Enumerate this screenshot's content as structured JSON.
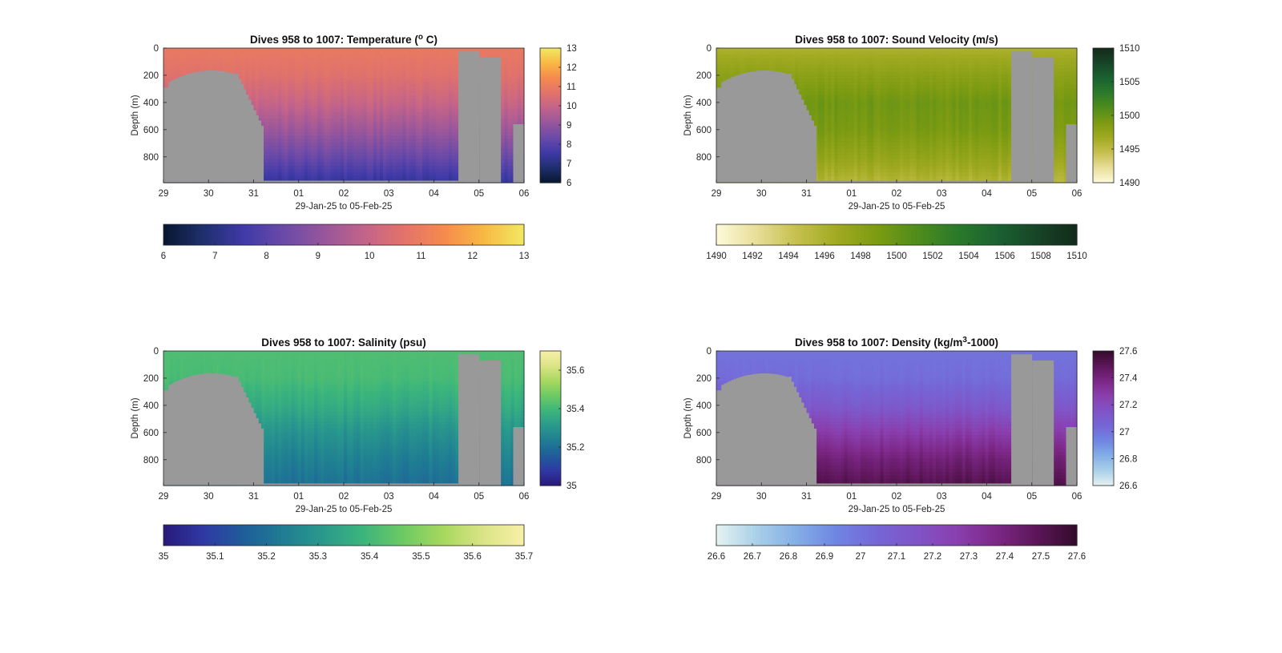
{
  "figure": {
    "panels": [
      {
        "id": "temperature",
        "title_prefix": "Dives 958 to 1007: Temperature (",
        "title_sup": "o",
        "title_suffix": " C)",
        "palette": [
          "#07172e",
          "#1f2f6e",
          "#3f3aa8",
          "#6a4aa8",
          "#97569c",
          "#c2638a",
          "#e2736a",
          "#f58a4e",
          "#f8b943",
          "#f1e963"
        ],
        "colorbar_ticks": [
          "6",
          "7",
          "8",
          "9",
          "10",
          "11",
          "12",
          "13"
        ],
        "cmin": 6,
        "cmax": 13
      },
      {
        "id": "sound_velocity",
        "title_prefix": "Dives 958 to 1007: Sound Velocity (m/s)",
        "title_sup": "",
        "title_suffix": "",
        "palette": [
          "#fefadb",
          "#e7de98",
          "#c6c04f",
          "#a1aa21",
          "#7d9b12",
          "#4f8d1c",
          "#2b7a2a",
          "#1b6231",
          "#174527",
          "#132a1b"
        ],
        "colorbar_ticks": [
          "1490",
          "1492",
          "1494",
          "1496",
          "1498",
          "1500",
          "1502",
          "1504",
          "1506",
          "1508",
          "1510"
        ],
        "side_ticks": [
          "1490",
          "1495",
          "1500",
          "1505",
          "1510"
        ],
        "cmin": 1490,
        "cmax": 1510
      },
      {
        "id": "salinity",
        "title_prefix": "Dives 958 to 1007: Salinity (psu)",
        "title_sup": "",
        "title_suffix": "",
        "palette": [
          "#29197a",
          "#2f39a4",
          "#1f5d9a",
          "#1f7d93",
          "#2a9a8c",
          "#3cb57c",
          "#6dca63",
          "#a8d85f",
          "#dbe486",
          "#f8f0a8"
        ],
        "colorbar_ticks": [
          "35",
          "35.1",
          "35.2",
          "35.3",
          "35.4",
          "35.5",
          "35.6",
          "35.7"
        ],
        "side_ticks": [
          "35",
          "35.2",
          "35.4",
          "35.6"
        ],
        "cmin": 35,
        "cmax": 35.7
      },
      {
        "id": "density",
        "title_prefix": "Dives 958 to 1007: Density (kg/m",
        "title_sup": "3",
        "title_suffix": "-1000)",
        "palette": [
          "#e6f2f2",
          "#a9d0e8",
          "#84aee6",
          "#6f85e2",
          "#7566d6",
          "#8054c6",
          "#8a3fae",
          "#7c2786",
          "#5c1658",
          "#330a2c"
        ],
        "colorbar_ticks": [
          "26.6",
          "26.7",
          "26.8",
          "26.9",
          "27",
          "27.1",
          "27.2",
          "27.3",
          "27.4",
          "27.5",
          "27.6"
        ],
        "side_ticks": [
          "26.6",
          "26.8",
          "27",
          "27.2",
          "27.4",
          "27.6"
        ],
        "cmin": 26.6,
        "cmax": 27.6
      }
    ],
    "y_ticks": [
      "0",
      "200",
      "400",
      "600",
      "800"
    ],
    "x_ticks": [
      "29",
      "30",
      "31",
      "01",
      "02",
      "03",
      "04",
      "05",
      "06"
    ],
    "xlabel": "29-Jan-25 to 05-Feb-25",
    "ylabel": "Depth (m)"
  },
  "chart_data": [
    {
      "type": "heatmap",
      "title": "Dives 958 to 1007: Temperature (o C)",
      "xlabel": "29-Jan-25 to 05-Feb-25",
      "ylabel": "Depth (m)",
      "x_ticks": [
        "29",
        "30",
        "31",
        "01",
        "02",
        "03",
        "04",
        "05",
        "06"
      ],
      "y_ticks": [
        0,
        200,
        400,
        600,
        800
      ],
      "ylim": [
        0,
        990
      ],
      "y_reversed": true,
      "colorbar": {
        "min": 6,
        "max": 13,
        "ticks": [
          6,
          7,
          8,
          9,
          10,
          11,
          12,
          13
        ],
        "side_ticks": [
          6,
          7,
          8,
          9,
          10,
          11,
          12,
          13
        ]
      },
      "profile": {
        "depth": [
          0,
          200,
          400,
          600,
          800,
          990
        ],
        "value": [
          10.9,
          10.6,
          10.0,
          9.2,
          8.3,
          7.3
        ]
      }
    },
    {
      "type": "heatmap",
      "title": "Dives 958 to 1007: Sound Velocity (m/s)",
      "xlabel": "29-Jan-25 to 05-Feb-25",
      "ylabel": "Depth (m)",
      "x_ticks": [
        "29",
        "30",
        "31",
        "01",
        "02",
        "03",
        "04",
        "05",
        "06"
      ],
      "y_ticks": [
        0,
        200,
        400,
        600,
        800
      ],
      "ylim": [
        0,
        990
      ],
      "y_reversed": true,
      "colorbar": {
        "min": 1490,
        "max": 1510,
        "ticks": [
          1490,
          1492,
          1494,
          1496,
          1498,
          1500,
          1502,
          1504,
          1506,
          1508,
          1510
        ],
        "side_ticks": [
          1490,
          1495,
          1500,
          1505,
          1510
        ]
      },
      "profile": {
        "depth": [
          0,
          200,
          400,
          600,
          800,
          990
        ],
        "value": [
          1496.0,
          1498.0,
          1499.5,
          1499.0,
          1497.5,
          1495.5
        ]
      }
    },
    {
      "type": "heatmap",
      "title": "Dives 958 to 1007: Salinity (psu)",
      "xlabel": "29-Jan-25 to 05-Feb-25",
      "ylabel": "Depth (m)",
      "x_ticks": [
        "29",
        "30",
        "31",
        "01",
        "02",
        "03",
        "04",
        "05",
        "06"
      ],
      "y_ticks": [
        0,
        200,
        400,
        600,
        800
      ],
      "ylim": [
        0,
        990
      ],
      "y_reversed": true,
      "colorbar": {
        "min": 35,
        "max": 35.7,
        "ticks": [
          35,
          35.1,
          35.2,
          35.3,
          35.4,
          35.5,
          35.6,
          35.7
        ],
        "side_ticks": [
          35,
          35.2,
          35.4,
          35.6
        ]
      },
      "profile": {
        "depth": [
          0,
          200,
          400,
          600,
          800,
          990
        ],
        "value": [
          35.42,
          35.41,
          35.36,
          35.29,
          35.24,
          35.2
        ]
      }
    },
    {
      "type": "heatmap",
      "title": "Dives 958 to 1007: Density (kg/m3-1000)",
      "xlabel": "29-Jan-25 to 05-Feb-25",
      "ylabel": "Depth (m)",
      "x_ticks": [
        "29",
        "30",
        "31",
        "01",
        "02",
        "03",
        "04",
        "05",
        "06"
      ],
      "y_ticks": [
        0,
        200,
        400,
        600,
        800
      ],
      "ylim": [
        0,
        990
      ],
      "y_reversed": true,
      "colorbar": {
        "min": 26.6,
        "max": 27.6,
        "ticks": [
          26.6,
          26.7,
          26.8,
          26.9,
          27,
          27.1,
          27.2,
          27.3,
          27.4,
          27.5,
          27.6
        ],
        "side_ticks": [
          26.6,
          26.8,
          27,
          27.2,
          27.4,
          27.6
        ]
      },
      "profile": {
        "depth": [
          0,
          200,
          400,
          600,
          800,
          990
        ],
        "value": [
          27.0,
          27.02,
          27.12,
          27.28,
          27.42,
          27.52
        ]
      }
    }
  ]
}
